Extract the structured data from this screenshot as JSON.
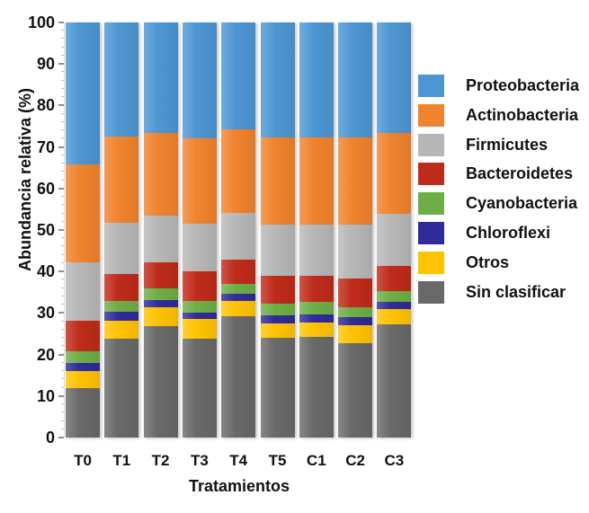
{
  "chart_data": {
    "type": "bar",
    "stacked": true,
    "title": "",
    "xlabel": "Tratamientos",
    "ylabel": "Abundancia relativa (%)",
    "ylim": [
      0,
      100
    ],
    "y_ticks": [
      0,
      10,
      20,
      30,
      40,
      50,
      60,
      70,
      80,
      90,
      100
    ],
    "y_minor_tick_step": 2,
    "grid": false,
    "legend_position": "right",
    "categories": [
      "T0",
      "T1",
      "T2",
      "T3",
      "T4",
      "T5",
      "C1",
      "C2",
      "C3"
    ],
    "series": [
      {
        "name": "Proteobacteria",
        "color": "#4E96D3",
        "values": [
          34.3,
          27.5,
          26.7,
          27.9,
          25.8,
          27.8,
          27.8,
          27.6,
          26.7
        ]
      },
      {
        "name": "Actinobacteria",
        "color": "#F0832E",
        "values": [
          23.6,
          20.8,
          19.9,
          20.6,
          20.1,
          20.9,
          20.8,
          21.0,
          19.4
        ]
      },
      {
        "name": "Firmicutes",
        "color": "#B7B7B7",
        "values": [
          13.9,
          12.2,
          11.3,
          11.5,
          11.2,
          12.4,
          12.5,
          13.2,
          12.6
        ]
      },
      {
        "name": "Bacteroidetes",
        "color": "#BF2B1A",
        "values": [
          7.4,
          6.5,
          6.2,
          7.2,
          5.9,
          6.6,
          6.3,
          6.8,
          6.0
        ]
      },
      {
        "name": "Cyanobacteria",
        "color": "#6EAE46",
        "values": [
          2.9,
          2.6,
          2.7,
          2.7,
          2.4,
          2.9,
          3.0,
          2.3,
          2.7
        ]
      },
      {
        "name": "Chloroflexi",
        "color": "#2F2B99",
        "values": [
          1.8,
          2.2,
          1.8,
          1.6,
          1.8,
          2.0,
          2.0,
          2.0,
          1.6
        ]
      },
      {
        "name": "Otros",
        "color": "#FFC303",
        "values": [
          4.3,
          4.5,
          4.6,
          4.8,
          3.6,
          3.4,
          3.4,
          4.3,
          3.8
        ]
      },
      {
        "name": "Sin clasificar",
        "color": "#696969",
        "values": [
          11.8,
          23.7,
          26.8,
          23.7,
          29.2,
          24.0,
          24.2,
          22.8,
          27.2
        ]
      }
    ]
  }
}
